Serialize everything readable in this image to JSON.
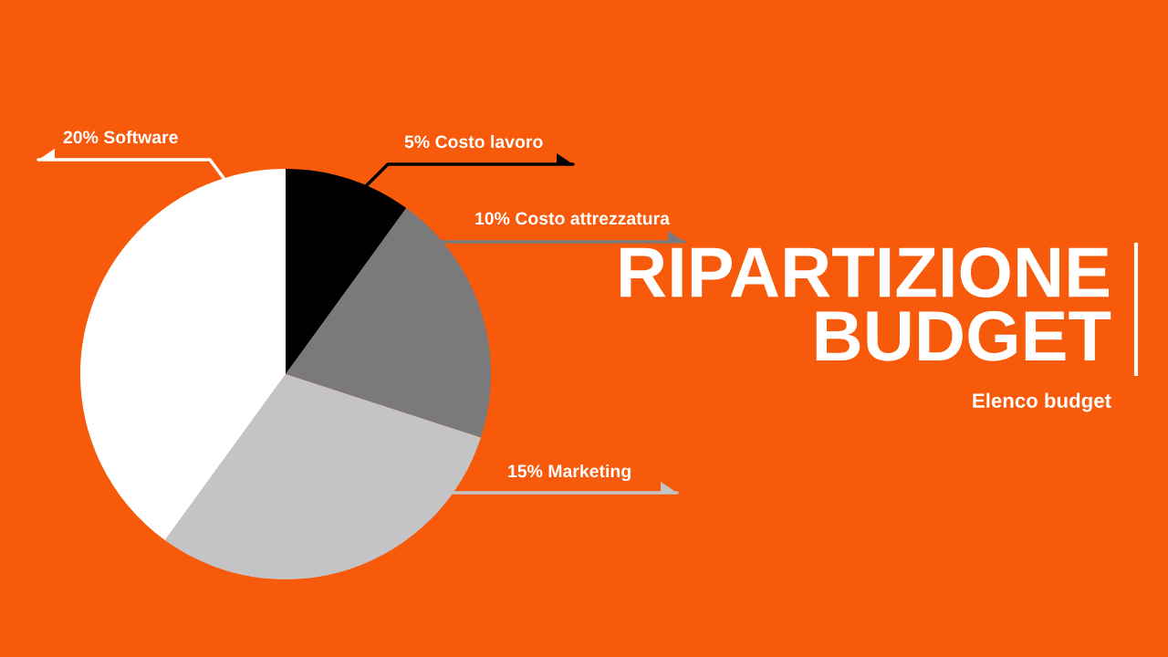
{
  "chart_data": {
    "type": "pie",
    "title": "RIPARTIZIONE\nBUDGET",
    "subtitle": "Elenco budget",
    "categories": [
      "Costo lavoro",
      "Costo attrezzatura",
      "Marketing",
      "Software"
    ],
    "values": [
      5,
      10,
      15,
      20
    ],
    "value_labels": [
      "5%",
      "10%",
      "15%",
      "20%"
    ],
    "colors": [
      "#000000",
      "#7a797b",
      "#c4c3c5",
      "#ffffff"
    ]
  }
}
